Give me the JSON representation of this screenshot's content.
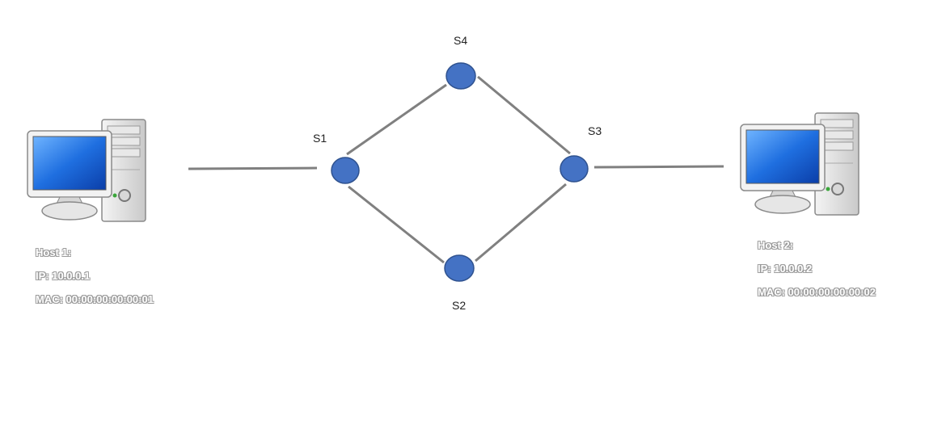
{
  "switches": [
    {
      "id": "s1",
      "label": "S1"
    },
    {
      "id": "s2",
      "label": "S2"
    },
    {
      "id": "s3",
      "label": "S3"
    },
    {
      "id": "s4",
      "label": "S4"
    }
  ],
  "hosts": [
    {
      "title": "Host 1:",
      "ip": "IP: 10.0.0.1",
      "mac": "MAC: 00:00:00:00:00:01"
    },
    {
      "title": "Host 2:",
      "ip": "IP: 10.0.0.2",
      "mac": "MAC: 00:00:00:00:00:02"
    }
  ],
  "links": [
    {
      "from": "host1",
      "to": "s1"
    },
    {
      "from": "s1",
      "to": "s4"
    },
    {
      "from": "s4",
      "to": "s3"
    },
    {
      "from": "s1",
      "to": "s2"
    },
    {
      "from": "s2",
      "to": "s3"
    },
    {
      "from": "s3",
      "to": "host2"
    }
  ],
  "colors": {
    "switch_fill": "#4472c4",
    "switch_stroke": "#2f528f",
    "link": "#808080",
    "screen": "#1f5fd0"
  },
  "icons": [
    "desktop-computer-icon"
  ]
}
